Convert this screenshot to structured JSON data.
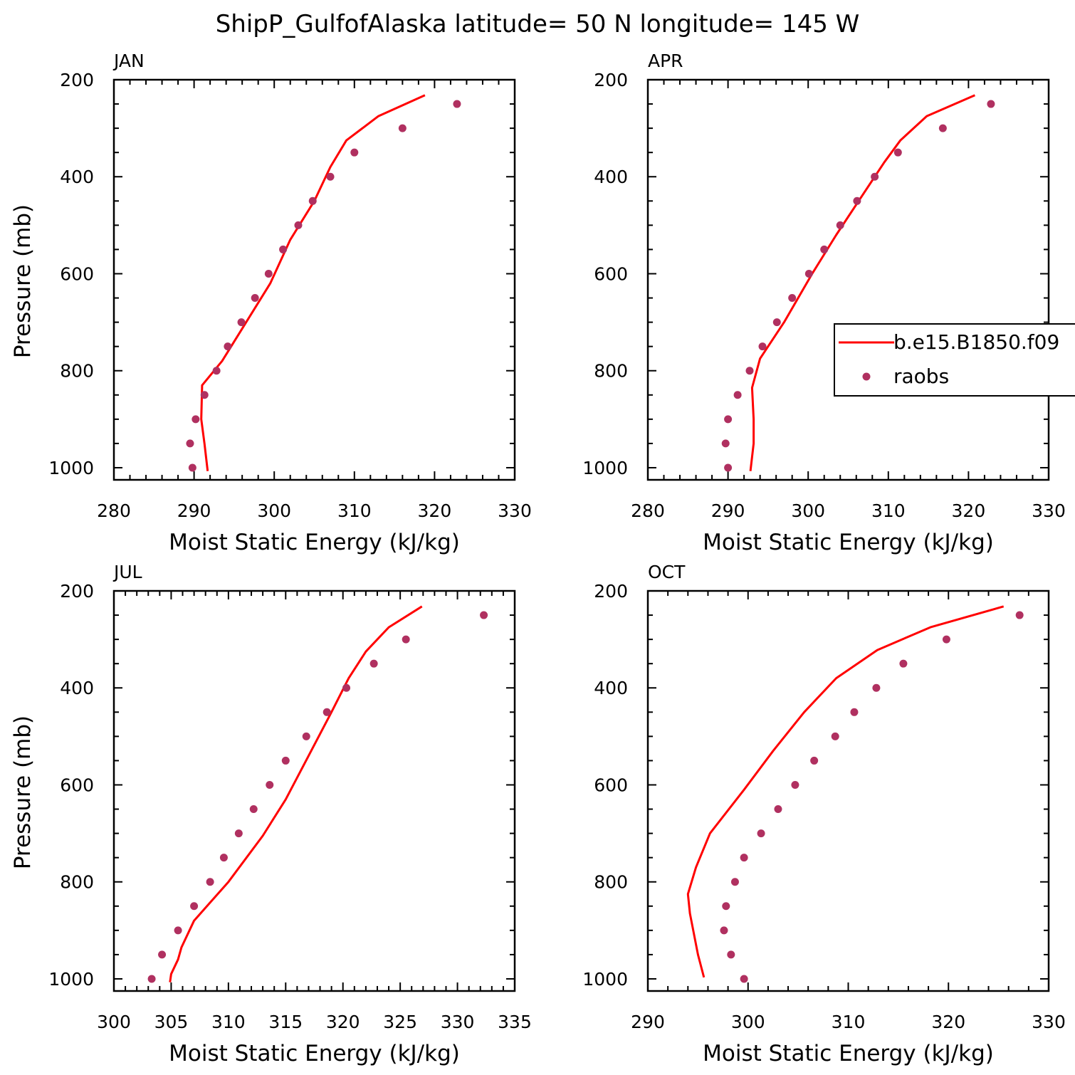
{
  "title": "ShipP_GulfofAlaska  latitude= 50 N longitude= 145 W",
  "colors": {
    "model": "#ff0000",
    "obs": "#b03060"
  },
  "legend": {
    "panel_index": 1,
    "placement": "right",
    "model_label": "b.e15.B1850.f09",
    "obs_label": "raobs"
  },
  "chart_data": [
    {
      "type": "line",
      "title": "JAN",
      "xlabel": "Moist Static Energy (kJ/kg)",
      "ylabel": "Pressure (mb)",
      "xlim": [
        280,
        330
      ],
      "ylim": [
        1025,
        200
      ],
      "y_inverted": true,
      "xticks": [
        280,
        290,
        300,
        310,
        320,
        330
      ],
      "yticks": [
        200,
        400,
        600,
        800,
        1000
      ],
      "series": [
        {
          "name": "b.e15.B1850.f09",
          "kind": "line",
          "points": [
            [
              291.7,
              1007
            ],
            [
              291.3,
              950
            ],
            [
              290.9,
              900
            ],
            [
              291.0,
              830
            ],
            [
              293.5,
              780
            ],
            [
              296.5,
              700
            ],
            [
              299.5,
              620
            ],
            [
              302.0,
              530
            ],
            [
              305.0,
              450
            ],
            [
              307.0,
              380
            ],
            [
              309.0,
              325
            ],
            [
              313.0,
              275
            ],
            [
              318.8,
              232
            ]
          ]
        },
        {
          "name": "raobs",
          "kind": "scatter",
          "points": [
            [
              289.8,
              1000
            ],
            [
              289.5,
              950
            ],
            [
              290.2,
              900
            ],
            [
              291.3,
              850
            ],
            [
              292.8,
              800
            ],
            [
              294.2,
              750
            ],
            [
              295.9,
              700
            ],
            [
              297.6,
              650
            ],
            [
              299.3,
              600
            ],
            [
              301.1,
              550
            ],
            [
              303.0,
              500
            ],
            [
              304.8,
              450
            ],
            [
              307.0,
              400
            ],
            [
              310.0,
              350
            ],
            [
              316.0,
              300
            ],
            [
              322.8,
              250
            ]
          ]
        }
      ]
    },
    {
      "type": "line",
      "title": "APR",
      "xlabel": "Moist Static Energy (kJ/kg)",
      "ylabel": "",
      "xlim": [
        280,
        330
      ],
      "ylim": [
        1025,
        200
      ],
      "y_inverted": true,
      "xticks": [
        280,
        290,
        300,
        310,
        320,
        330
      ],
      "yticks": [
        200,
        400,
        600,
        800,
        1000
      ],
      "series": [
        {
          "name": "b.e15.B1850.f09",
          "kind": "line",
          "points": [
            [
              292.8,
              1007
            ],
            [
              293.2,
              950
            ],
            [
              293.2,
              900
            ],
            [
              293.0,
              835
            ],
            [
              294.0,
              775
            ],
            [
              297.0,
              700
            ],
            [
              300.5,
              600
            ],
            [
              303.5,
              520
            ],
            [
              306.3,
              450
            ],
            [
              309.5,
              370
            ],
            [
              311.5,
              325
            ],
            [
              314.8,
              275
            ],
            [
              320.8,
              232
            ]
          ]
        },
        {
          "name": "raobs",
          "kind": "scatter",
          "points": [
            [
              290.0,
              1000
            ],
            [
              289.7,
              950
            ],
            [
              290.0,
              900
            ],
            [
              291.2,
              850
            ],
            [
              292.7,
              800
            ],
            [
              294.3,
              750
            ],
            [
              296.1,
              700
            ],
            [
              298.0,
              650
            ],
            [
              300.1,
              600
            ],
            [
              302.0,
              550
            ],
            [
              304.0,
              500
            ],
            [
              306.1,
              450
            ],
            [
              308.3,
              400
            ],
            [
              311.2,
              350
            ],
            [
              316.8,
              300
            ],
            [
              322.8,
              250
            ]
          ]
        }
      ]
    },
    {
      "type": "line",
      "title": "JUL",
      "xlabel": "Moist Static Energy (kJ/kg)",
      "ylabel": "Pressure (mb)",
      "xlim": [
        300,
        335
      ],
      "ylim": [
        1025,
        200
      ],
      "y_inverted": true,
      "xticks": [
        300,
        305,
        310,
        315,
        320,
        325,
        330,
        335
      ],
      "yticks": [
        200,
        400,
        600,
        800,
        1000
      ],
      "series": [
        {
          "name": "b.e15.B1850.f09",
          "kind": "line",
          "points": [
            [
              304.9,
              1007
            ],
            [
              305.0,
              990
            ],
            [
              305.6,
              960
            ],
            [
              305.9,
              935
            ],
            [
              307.0,
              880
            ],
            [
              310.0,
              800
            ],
            [
              313.0,
              705
            ],
            [
              315.0,
              630
            ],
            [
              317.0,
              540
            ],
            [
              319.0,
              450
            ],
            [
              320.5,
              380
            ],
            [
              322.0,
              325
            ],
            [
              324.0,
              275
            ],
            [
              326.9,
              232
            ]
          ]
        },
        {
          "name": "raobs",
          "kind": "scatter",
          "points": [
            [
              303.3,
              1000
            ],
            [
              304.2,
              950
            ],
            [
              305.6,
              900
            ],
            [
              307.0,
              850
            ],
            [
              308.4,
              800
            ],
            [
              309.6,
              750
            ],
            [
              310.9,
              700
            ],
            [
              312.2,
              650
            ],
            [
              313.6,
              600
            ],
            [
              315.0,
              550
            ],
            [
              316.8,
              500
            ],
            [
              318.6,
              450
            ],
            [
              320.3,
              400
            ],
            [
              322.7,
              350
            ],
            [
              325.5,
              300
            ],
            [
              332.3,
              250
            ]
          ]
        }
      ]
    },
    {
      "type": "line",
      "title": "OCT",
      "xlabel": "Moist Static Energy (kJ/kg)",
      "ylabel": "",
      "xlim": [
        290,
        330
      ],
      "ylim": [
        1025,
        200
      ],
      "y_inverted": true,
      "xticks": [
        290,
        300,
        310,
        320,
        330
      ],
      "yticks": [
        200,
        400,
        600,
        800,
        1000
      ],
      "series": [
        {
          "name": "b.e15.B1850.f09",
          "kind": "line",
          "points": [
            [
              295.6,
              997
            ],
            [
              295.0,
              950
            ],
            [
              294.2,
              865
            ],
            [
              294.0,
              825
            ],
            [
              294.8,
              770
            ],
            [
              296.2,
              700
            ],
            [
              299.6,
              610
            ],
            [
              302.5,
              530
            ],
            [
              305.6,
              450
            ],
            [
              308.8,
              380
            ],
            [
              312.9,
              322
            ],
            [
              318.2,
              275
            ],
            [
              325.5,
              232
            ]
          ]
        },
        {
          "name": "raobs",
          "kind": "scatter",
          "points": [
            [
              299.6,
              1000
            ],
            [
              298.3,
              950
            ],
            [
              297.6,
              900
            ],
            [
              297.8,
              850
            ],
            [
              298.7,
              800
            ],
            [
              299.6,
              750
            ],
            [
              301.3,
              700
            ],
            [
              303.0,
              650
            ],
            [
              304.7,
              600
            ],
            [
              306.6,
              550
            ],
            [
              308.7,
              500
            ],
            [
              310.6,
              450
            ],
            [
              312.8,
              400
            ],
            [
              315.5,
              350
            ],
            [
              319.8,
              300
            ],
            [
              327.1,
              250
            ]
          ]
        }
      ]
    }
  ]
}
